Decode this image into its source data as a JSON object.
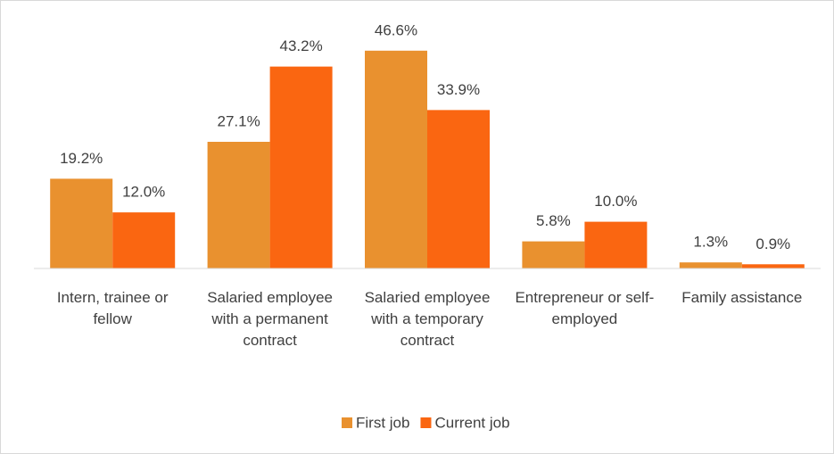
{
  "chart_data": {
    "type": "bar",
    "categories": [
      "Intern, trainee or fellow",
      "Salaried employee with a permanent contract",
      "Salaried employee with a temporary contract",
      "Entrepreneur or self-employed",
      "Family assistance"
    ],
    "series": [
      {
        "name": "First job",
        "color": "#E9912F",
        "values": [
          19.2,
          27.1,
          46.6,
          5.8,
          1.3
        ],
        "value_labels": [
          "19.2%",
          "27.1%",
          "46.6%",
          "5.8%",
          "1.3%"
        ]
      },
      {
        "name": "Current job",
        "color": "#FA6611",
        "values": [
          12.0,
          43.2,
          33.9,
          10.0,
          0.9
        ],
        "value_labels": [
          "12.0%",
          "43.2%",
          "33.9%",
          "10.0%",
          "0.9%"
        ]
      }
    ],
    "ylim": [
      0,
      50
    ],
    "legend": "bottom"
  }
}
